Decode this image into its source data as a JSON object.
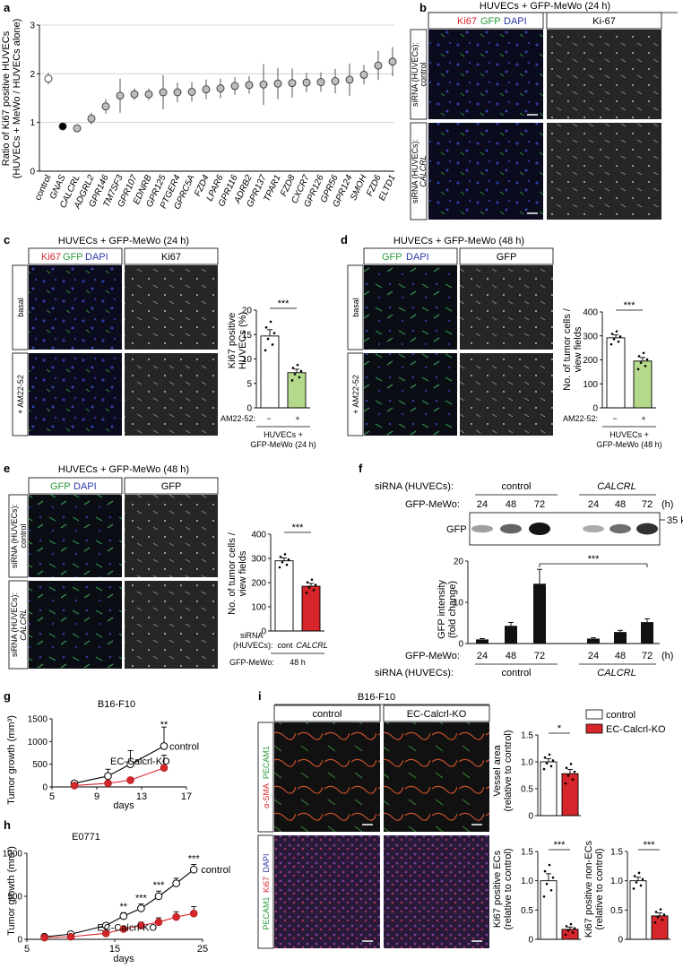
{
  "panel_letters": [
    "a",
    "b",
    "c",
    "d",
    "e",
    "f",
    "g",
    "h",
    "i"
  ],
  "colors": {
    "control_fill": "#ffffff",
    "inhibitor_fill": "#b5d98a",
    "knockdown_fill": "#d7262b",
    "ko_fill": "#d7262b",
    "bar_dark": "#111111",
    "micrograph_dark": "#0b0b1e",
    "micrograph_gray": "#2a2a2a"
  },
  "panel_a": {
    "ylabel_line1": "Ratio of Ki67 positive HUVECs",
    "ylabel_line2": "(HUVECs + MeWo / HUVECs alone)",
    "yticks": [
      "0",
      "1",
      "2",
      "3"
    ],
    "xlabels": [
      "control",
      "GNAS",
      "CALCRL",
      "ADGRL2",
      "GPR146",
      "TM7SF3",
      "GPR107",
      "EDNRB",
      "GPR125",
      "PTGER4",
      "GPRC5A",
      "FZD4",
      "LPAR6",
      "GPR116",
      "ADRB2",
      "GPR137",
      "TPAR1",
      "FZD8",
      "CXCR7",
      "GPR126",
      "GPR56",
      "GPR124",
      "SMOH",
      "FZD6",
      "ELTD1"
    ]
  },
  "panel_b": {
    "title": "HUVECs + GFP-MeWo (24 h)",
    "stain_ki67": "Ki67",
    "stain_gfp": "GFP",
    "stain_dapi": "DAPI",
    "col2": "Ki-67",
    "row1_line1": "siRNA (HUVECs):",
    "row1_line2": "control",
    "row2_line1": "siRNA (HUVECs):",
    "row2_line2": "CALCRL"
  },
  "panel_c": {
    "title": "HUVECs + GFP-MeWo (24 h)",
    "stain_ki67": "Ki67",
    "stain_gfp": "GFP",
    "stain_dapi": "DAPI",
    "col2": "Ki67",
    "row1": "basal",
    "row2": "+ AM22-52",
    "ylabel_line1": "Ki67 positive",
    "ylabel_line2": "HUVECs (%)",
    "yticks": [
      "0",
      "5",
      "10",
      "15",
      "20"
    ],
    "sig": "***",
    "treat_label": "AM22-52:",
    "treat_minus": "−",
    "treat_plus": "+",
    "caption_line1": "HUVECs +",
    "caption_line2": "GFP-MeWo (24 h)"
  },
  "panel_d": {
    "title": "HUVECs + GFP-MeWo (48 h)",
    "stain_gfp": "GFP",
    "stain_dapi": "DAPI",
    "col2": "GFP",
    "row1": "basal",
    "row2": "+ AM22-52",
    "ylabel_line1": "No. of tumor cells /",
    "ylabel_line2": "view fields",
    "yticks": [
      "0",
      "100",
      "200",
      "300",
      "400"
    ],
    "sig": "***",
    "treat_label": "AM22-52:",
    "treat_minus": "−",
    "treat_plus": "+",
    "caption_line1": "HUVECs +",
    "caption_line2": "GFP-MeWo (48 h)"
  },
  "panel_e": {
    "title": "HUVECs + GFP-MeWo (48 h)",
    "stain_gfp": "GFP",
    "stain_dapi": "DAPI",
    "col2": "GFP",
    "row1_line1": "siRNA (HUVECs):",
    "row1_line2": "control",
    "row2_line1": "siRNA (HUVECs):",
    "row2_line2": "CALCRL",
    "ylabel_line1": "No. of  tumor cells /",
    "ylabel_line2": "view fields",
    "yticks": [
      "0",
      "100",
      "200",
      "300",
      "400"
    ],
    "sig": "***",
    "sirna_line1": "siRNA",
    "sirna_line2": "(HUVECs):",
    "cat_cont": "cont",
    "cat_calcrl": "CALCRL",
    "gfp_label": "GFP-MeWo:",
    "gfp_time": "48 h"
  },
  "panel_f": {
    "sirna_label": "siRNA (HUVECs):",
    "group_control": "control",
    "group_calcrl": "CALCRL",
    "gfp_mewo_label": "GFP-MeWo:",
    "times": [
      "24",
      "48",
      "72",
      "24",
      "48",
      "72"
    ],
    "unit_h": "(h)",
    "blot_label": "GFP",
    "kd_marker": "35 kD",
    "ylabel_line1": "GFP intensity",
    "ylabel_line2": "(fold change)",
    "yticks": [
      "0",
      "10",
      "20"
    ],
    "sig": "***"
  },
  "panel_g": {
    "title": "B16-F10",
    "ylabel": "Tumor growth (mm³)",
    "xlabel": "days",
    "yticks": [
      "0",
      "500",
      "1000",
      "1500"
    ],
    "xticks": [
      "5",
      "9",
      "13",
      "17"
    ],
    "sig": "**",
    "label_control": "control",
    "label_ko": "EC-Calcrl-KO"
  },
  "panel_h": {
    "title": "E0771",
    "ylabel": "Tumor growth (mm³)",
    "xlabel": "days",
    "yticks": [
      "0",
      "500",
      "1000"
    ],
    "xticks": [
      "5",
      "15",
      "25"
    ],
    "sig": [
      "**",
      "***",
      "***",
      "***"
    ],
    "label_control": "control",
    "label_ko": "EC-Calcrl-KO"
  },
  "panel_i": {
    "title": "B16-F10",
    "col_control": "control",
    "col_ko": "EC-Calcrl-KO",
    "stain1_a": "α-SMA",
    "stain1_b": "PECAM1",
    "stain2_a": "PECAM1",
    "stain2_b": "Ki67",
    "stain2_c": "DAPI",
    "legend_control": "control",
    "legend_ko": "EC-Calcrl-KO",
    "bar1_ylabel_line1": "Vessel area",
    "bar1_ylabel_line2": "(relative to control)",
    "bar1_yticks": [
      "0",
      "0.5",
      "1.0",
      "1.5"
    ],
    "bar1_sig": "*",
    "bar2_ylabel_line1": "Ki67 positive ECs",
    "bar2_ylabel_line2": "(relative to control)",
    "bar2_yticks": [
      "0",
      "0.5",
      "1.0",
      "1.5"
    ],
    "bar2_sig": "***",
    "bar3_ylabel_line1": "Ki67 positive non-ECs",
    "bar3_ylabel_line2": "(relative to control)",
    "bar3_yticks": [
      "0",
      "0.5",
      "1.0",
      "1.5"
    ],
    "bar3_sig": "***"
  },
  "chart_data": [
    {
      "id": "a",
      "type": "scatter",
      "ylabel": "Ratio of Ki67 positive HUVECs (HUVECs + MeWo / HUVECs alone)",
      "ylim": [
        0,
        3
      ],
      "categories": [
        "control",
        "GNAS",
        "CALCRL",
        "ADGRL2",
        "GPR146",
        "TM7SF3",
        "GPR107",
        "EDNRB",
        "GPR125",
        "PTGER4",
        "GPRC5A",
        "FZD4",
        "LPAR6",
        "GPR116",
        "ADRB2",
        "GPR137",
        "TPAR1",
        "FZD8",
        "CXCR7",
        "GPR126",
        "GPR56",
        "GPR124",
        "SMOH",
        "FZD6",
        "ELTD1"
      ],
      "values": [
        1.9,
        0.92,
        0.88,
        1.08,
        1.33,
        1.55,
        1.58,
        1.58,
        1.62,
        1.62,
        1.63,
        1.68,
        1.7,
        1.75,
        1.77,
        1.78,
        1.8,
        1.81,
        1.82,
        1.83,
        1.85,
        1.88,
        1.98,
        2.17,
        2.25
      ],
      "errors": [
        0.12,
        0.06,
        0.04,
        0.12,
        0.15,
        0.35,
        0.12,
        0.12,
        0.35,
        0.2,
        0.2,
        0.2,
        0.2,
        0.18,
        0.18,
        0.42,
        0.32,
        0.3,
        0.2,
        0.2,
        0.25,
        0.33,
        0.2,
        0.3,
        0.3
      ]
    },
    {
      "id": "c",
      "type": "bar",
      "ylabel": "Ki67 positive HUVECs (%)",
      "ylim": [
        0,
        20
      ],
      "categories": [
        "−",
        "+"
      ],
      "values": [
        14.7,
        7.2
      ],
      "errors": [
        1.3,
        0.7
      ]
    },
    {
      "id": "d",
      "type": "bar",
      "ylabel": "No. of tumor cells / view fields",
      "ylim": [
        0,
        400
      ],
      "categories": [
        "−",
        "+"
      ],
      "values": [
        292,
        195
      ],
      "errors": [
        12,
        15
      ]
    },
    {
      "id": "e",
      "type": "bar",
      "ylabel": "No. of tumor cells / view fields",
      "ylim": [
        0,
        400
      ],
      "categories": [
        "cont",
        "CALCRL"
      ],
      "values": [
        290,
        185
      ],
      "errors": [
        12,
        12
      ]
    },
    {
      "id": "f",
      "type": "bar",
      "ylabel": "GFP intensity (fold change)",
      "ylim": [
        0,
        20
      ],
      "categories": [
        "24",
        "48",
        "72",
        "24",
        "48",
        "72"
      ],
      "groups": [
        "control",
        "control",
        "control",
        "CALCRL",
        "CALCRL",
        "CALCRL"
      ],
      "values": [
        1.0,
        4.3,
        14.5,
        1.2,
        2.8,
        5.2
      ],
      "errors": [
        0.2,
        0.8,
        3.5,
        0.2,
        0.4,
        0.8
      ],
      "blot_band_intensity": [
        0.3,
        0.6,
        1.0,
        0.25,
        0.55,
        0.85
      ]
    },
    {
      "id": "g",
      "type": "line",
      "title": "B16-F10",
      "xlabel": "days",
      "ylabel": "Tumor growth (mm³)",
      "xlim": [
        5,
        17
      ],
      "ylim": [
        0,
        1500
      ],
      "series": [
        {
          "name": "control",
          "x": [
            7,
            10,
            12,
            15
          ],
          "y": [
            80,
            240,
            500,
            900
          ],
          "err": [
            40,
            150,
            300,
            420
          ]
        },
        {
          "name": "EC-Calcrl-KO",
          "x": [
            7,
            10,
            12,
            15
          ],
          "y": [
            30,
            80,
            150,
            420
          ],
          "err": [
            15,
            30,
            60,
            280
          ]
        }
      ]
    },
    {
      "id": "h",
      "type": "line",
      "title": "E0771",
      "xlabel": "days",
      "ylabel": "Tumor growth (mm³)",
      "xlim": [
        5,
        25
      ],
      "ylim": [
        0,
        1000
      ],
      "series": [
        {
          "name": "control",
          "x": [
            7,
            10,
            14,
            16,
            18,
            20,
            22,
            24
          ],
          "y": [
            30,
            60,
            160,
            270,
            360,
            500,
            650,
            810
          ],
          "err": [
            10,
            20,
            30,
            40,
            50,
            60,
            60,
            60
          ]
        },
        {
          "name": "EC-Calcrl-KO",
          "x": [
            7,
            10,
            14,
            16,
            18,
            20,
            22,
            24
          ],
          "y": [
            20,
            30,
            70,
            120,
            160,
            200,
            260,
            300
          ],
          "err": [
            10,
            10,
            20,
            30,
            40,
            50,
            60,
            80
          ]
        }
      ]
    },
    {
      "id": "i1",
      "type": "bar",
      "ylabel": "Vessel area (relative to control)",
      "ylim": [
        0,
        1.5
      ],
      "categories": [
        "control",
        "EC-Calcrl-KO"
      ],
      "values": [
        1.0,
        0.78
      ],
      "errors": [
        0.06,
        0.08
      ]
    },
    {
      "id": "i2",
      "type": "bar",
      "ylabel": "Ki67 positive ECs (relative to control)",
      "ylim": [
        0,
        1.5
      ],
      "categories": [
        "control",
        "EC-Calcrl-KO"
      ],
      "values": [
        1.0,
        0.17
      ],
      "errors": [
        0.12,
        0.04
      ]
    },
    {
      "id": "i3",
      "type": "bar",
      "ylabel": "Ki67 positive non-ECs (relative to control)",
      "ylim": [
        0,
        1.5
      ],
      "categories": [
        "control",
        "EC-Calcrl-KO"
      ],
      "values": [
        1.0,
        0.4
      ],
      "errors": [
        0.06,
        0.05
      ]
    }
  ]
}
